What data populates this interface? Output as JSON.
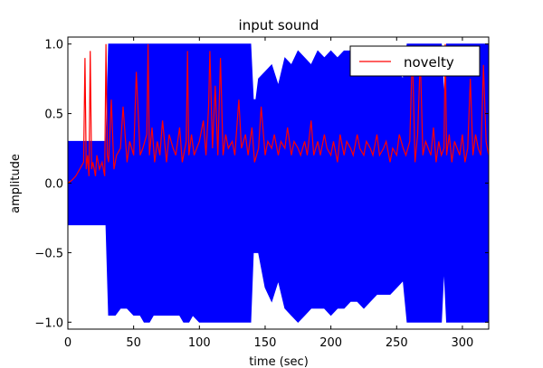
{
  "chart_data": {
    "type": "line",
    "title": "input sound",
    "xlabel": "time (sec)",
    "ylabel": "amplitude",
    "xlim": [
      0,
      320
    ],
    "ylim": [
      -1.05,
      1.05
    ],
    "xticks": [
      0,
      50,
      100,
      150,
      200,
      250,
      300
    ],
    "yticks": [
      -1.0,
      -0.5,
      0.0,
      0.5,
      1.0
    ],
    "xtick_labels": [
      "0",
      "50",
      "100",
      "150",
      "200",
      "250",
      "300"
    ],
    "ytick_labels": [
      "−1.0",
      "−0.5",
      "0.0",
      "0.5",
      "1.0"
    ],
    "grid": false,
    "legend_position": "top-right",
    "series": [
      {
        "name": "",
        "kind": "waveform-envelope",
        "color": "#0000ff",
        "x": [
          0,
          5,
          10,
          15,
          20,
          25,
          29,
          31,
          34,
          36,
          40,
          45,
          50,
          55,
          58,
          60,
          62,
          65,
          70,
          75,
          80,
          85,
          88,
          90,
          92,
          95,
          100,
          105,
          110,
          115,
          120,
          125,
          130,
          135,
          139,
          141,
          143,
          145,
          150,
          155,
          160,
          165,
          170,
          175,
          180,
          185,
          190,
          195,
          200,
          205,
          210,
          215,
          220,
          225,
          230,
          235,
          240,
          245,
          250,
          255,
          258,
          262,
          265,
          270,
          275,
          280,
          284,
          286,
          288,
          290,
          295,
          300,
          305,
          310,
          315,
          320
        ],
        "upper": [
          0.3,
          0.3,
          0.3,
          0.3,
          0.3,
          0.3,
          0.3,
          1.0,
          1.0,
          1.0,
          1.0,
          1.0,
          1.0,
          1.0,
          1.0,
          1.0,
          1.0,
          1.0,
          1.0,
          1.0,
          1.0,
          1.0,
          1.0,
          1.0,
          1.0,
          1.0,
          1.0,
          1.0,
          1.0,
          1.0,
          1.0,
          1.0,
          1.0,
          1.0,
          1.0,
          0.6,
          0.6,
          0.75,
          0.8,
          0.85,
          0.7,
          0.9,
          0.85,
          0.95,
          0.9,
          0.85,
          0.95,
          0.9,
          0.95,
          0.9,
          0.95,
          0.95,
          0.85,
          0.9,
          0.9,
          0.85,
          0.9,
          0.8,
          0.8,
          0.75,
          1.0,
          1.0,
          1.0,
          1.0,
          1.0,
          1.0,
          1.0,
          0.6,
          1.0,
          1.0,
          1.0,
          1.0,
          1.0,
          1.0,
          1.0,
          1.0
        ],
        "lower": [
          -0.3,
          -0.3,
          -0.3,
          -0.3,
          -0.3,
          -0.3,
          -0.3,
          -0.95,
          -0.95,
          -0.95,
          -0.9,
          -0.9,
          -0.95,
          -0.95,
          -1.0,
          -1.0,
          -1.0,
          -0.95,
          -0.95,
          -0.95,
          -0.95,
          -0.95,
          -1.0,
          -1.0,
          -1.0,
          -0.95,
          -1.0,
          -1.0,
          -1.0,
          -1.0,
          -1.0,
          -1.0,
          -1.0,
          -1.0,
          -1.0,
          -0.5,
          -0.5,
          -0.5,
          -0.75,
          -0.85,
          -0.7,
          -0.9,
          -0.95,
          -1.0,
          -0.95,
          -0.9,
          -0.9,
          -0.9,
          -0.95,
          -0.9,
          -0.9,
          -0.85,
          -0.85,
          -0.9,
          -0.85,
          -0.8,
          -0.8,
          -0.8,
          -0.75,
          -0.7,
          -1.0,
          -1.0,
          -1.0,
          -1.0,
          -1.0,
          -1.0,
          -1.0,
          -0.6,
          -1.0,
          -1.0,
          -1.0,
          -1.0,
          -1.0,
          -1.0,
          -1.0,
          -1.0
        ]
      },
      {
        "name": "novelty",
        "color": "#ff0000",
        "x": [
          0,
          3,
          6,
          9,
          12,
          13,
          14,
          15,
          16,
          17,
          18,
          19,
          20,
          21,
          22,
          24,
          26,
          28,
          29,
          30,
          31,
          33,
          35,
          37,
          40,
          42,
          45,
          47,
          50,
          52,
          55,
          57,
          60,
          61,
          62,
          64,
          66,
          68,
          70,
          72,
          75,
          77,
          80,
          82,
          85,
          87,
          90,
          91,
          92,
          94,
          96,
          98,
          100,
          103,
          105,
          107,
          108,
          110,
          112,
          114,
          116,
          118,
          120,
          122,
          125,
          127,
          130,
          132,
          135,
          137,
          140,
          142,
          145,
          147,
          150,
          152,
          155,
          157,
          160,
          162,
          165,
          167,
          170,
          172,
          175,
          177,
          180,
          182,
          185,
          187,
          190,
          192,
          195,
          197,
          200,
          202,
          205,
          207,
          210,
          212,
          215,
          217,
          220,
          222,
          225,
          227,
          230,
          232,
          235,
          237,
          240,
          242,
          245,
          247,
          250,
          252,
          255,
          257,
          260,
          262,
          264,
          266,
          268,
          270,
          272,
          274,
          276,
          278,
          280,
          282,
          284,
          286,
          287,
          288,
          290,
          292,
          294,
          296,
          298,
          300,
          302,
          304,
          306,
          308,
          310,
          312,
          314,
          316,
          318,
          320
        ],
        "y": [
          0.0,
          0.02,
          0.05,
          0.1,
          0.15,
          0.9,
          0.1,
          0.2,
          0.05,
          0.95,
          0.1,
          0.15,
          0.1,
          0.05,
          0.2,
          0.1,
          0.15,
          0.05,
          1.0,
          0.2,
          0.15,
          0.6,
          0.1,
          0.2,
          0.25,
          0.55,
          0.15,
          0.3,
          0.2,
          0.8,
          0.2,
          0.25,
          0.35,
          1.0,
          0.2,
          0.4,
          0.15,
          0.3,
          0.2,
          0.45,
          0.15,
          0.35,
          0.25,
          0.2,
          0.4,
          0.15,
          0.3,
          0.95,
          0.2,
          0.35,
          0.2,
          0.25,
          0.3,
          0.45,
          0.2,
          0.55,
          0.95,
          0.25,
          0.7,
          0.2,
          0.9,
          0.2,
          0.35,
          0.25,
          0.3,
          0.2,
          0.6,
          0.25,
          0.35,
          0.2,
          0.4,
          0.15,
          0.25,
          0.55,
          0.2,
          0.3,
          0.25,
          0.35,
          0.2,
          0.3,
          0.25,
          0.4,
          0.2,
          0.3,
          0.25,
          0.2,
          0.3,
          0.2,
          0.45,
          0.2,
          0.3,
          0.2,
          0.35,
          0.25,
          0.2,
          0.3,
          0.15,
          0.35,
          0.2,
          0.3,
          0.25,
          0.2,
          0.35,
          0.25,
          0.2,
          0.3,
          0.25,
          0.2,
          0.35,
          0.2,
          0.25,
          0.3,
          0.15,
          0.25,
          0.2,
          0.35,
          0.25,
          0.2,
          0.3,
          0.95,
          0.15,
          0.35,
          0.9,
          0.2,
          0.3,
          0.25,
          0.2,
          0.4,
          0.15,
          0.3,
          0.2,
          0.25,
          1.0,
          0.2,
          0.35,
          0.15,
          0.3,
          0.25,
          0.2,
          0.35,
          0.15,
          0.25,
          0.75,
          0.2,
          0.35,
          0.25,
          0.2,
          0.85,
          0.3,
          0.2
        ]
      }
    ]
  }
}
